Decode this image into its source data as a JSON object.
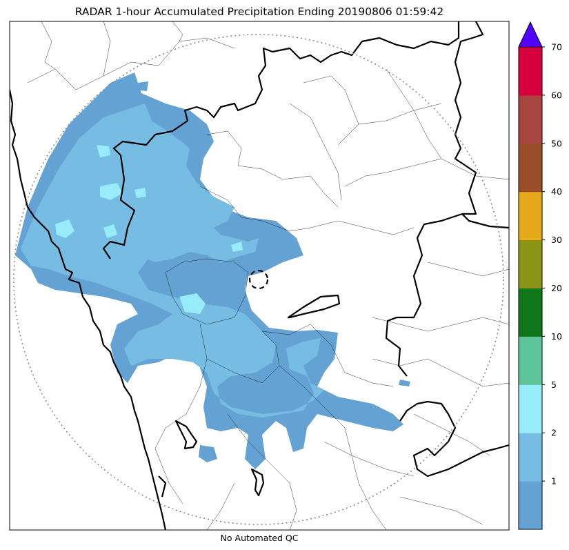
{
  "title": "RADAR 1-hour Accumulated Precipitation Ending 20190806 01:59:42",
  "footer": "No Automated QC",
  "colorbar": {
    "ticks": [
      "1",
      "2",
      "5",
      "10",
      "20",
      "30",
      "40",
      "50",
      "60",
      "70"
    ],
    "bins": [
      {
        "color": "#64a2d4"
      },
      {
        "color": "#77bde3"
      },
      {
        "color": "#98ecfa"
      },
      {
        "color": "#5dc49c"
      },
      {
        "color": "#0f771a"
      },
      {
        "color": "#8b9414"
      },
      {
        "color": "#e5a91b"
      },
      {
        "color": "#9a4e27"
      },
      {
        "color": "#a6463f"
      },
      {
        "color": "#d6003f"
      }
    ],
    "extend_color": "#5200ff"
  },
  "colors": {
    "precip_light": "#64a2d4",
    "precip_moderate": "#77bde3",
    "precip_heavy": "#98ecfa",
    "coastline": "#000000",
    "range_ring": "#888888"
  }
}
